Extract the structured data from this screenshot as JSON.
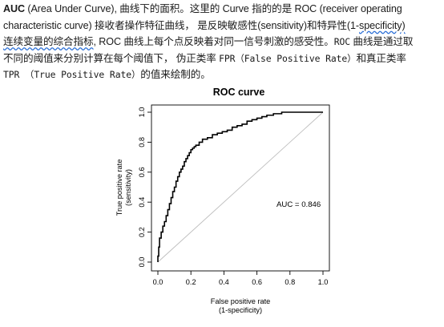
{
  "paragraph": {
    "line1": {
      "term": "AUC",
      "rest": " (Area Under Curve), 曲线下的面积。这里的 Curve 指的的是 ROC (receiver operating"
    },
    "line2": {
      "text": "characteristic curve) 接收者操作特征曲线， 是反映敏感性(sensitivity)和特异性(1-",
      "underlined": "specificity)"
    },
    "line3": {
      "underlined": "连续变量的综合指标",
      "text": ", ROC 曲线上每个点反映着对同一信号刺激的感受性。",
      "mono": "ROC",
      "tail": " 曲线是通过取"
    },
    "line4": {
      "text_a": "不同的阈值来分别计算在每个阈值下， 伪正类率 ",
      "mono": "FPR（False Positive Rate）",
      "text_b": "和真正类率"
    },
    "line5": {
      "mono": "TPR （True Positive Rate）",
      "text": "的值来绘制的。"
    }
  },
  "chart_data": {
    "type": "line",
    "title": "ROC curve",
    "xlabel": "False positive rate",
    "xlabel2": "(1-specificity)",
    "ylabel": "True positive rate",
    "ylabel2": "(sensitivity)",
    "xlim": [
      0,
      1
    ],
    "ylim": [
      0,
      1
    ],
    "xticks": [
      "0.0",
      "0.2",
      "0.4",
      "0.6",
      "0.8",
      "1.0"
    ],
    "yticks": [
      "0.0",
      "0.2",
      "0.4",
      "0.6",
      "0.8",
      "1.0"
    ],
    "annotation": "AUC = 0.846",
    "grid": false,
    "colors": {
      "curve": "#000000",
      "diagonal": "#bdbdbd"
    },
    "series": [
      {
        "name": "",
        "x": [
          0.0,
          0.0,
          0.005,
          0.005,
          0.01,
          0.01,
          0.02,
          0.02,
          0.03,
          0.03,
          0.04,
          0.04,
          0.05,
          0.05,
          0.06,
          0.06,
          0.07,
          0.07,
          0.08,
          0.08,
          0.09,
          0.09,
          0.1,
          0.1,
          0.11,
          0.11,
          0.12,
          0.12,
          0.13,
          0.13,
          0.14,
          0.14,
          0.15,
          0.15,
          0.16,
          0.16,
          0.17,
          0.17,
          0.18,
          0.18,
          0.19,
          0.19,
          0.2,
          0.2,
          0.21,
          0.21,
          0.22,
          0.22,
          0.23,
          0.23,
          0.25,
          0.25,
          0.27,
          0.27,
          0.3,
          0.3,
          0.33,
          0.33,
          0.36,
          0.36,
          0.39,
          0.39,
          0.42,
          0.42,
          0.45,
          0.45,
          0.48,
          0.48,
          0.51,
          0.51,
          0.54,
          0.54,
          0.57,
          0.57,
          0.6,
          0.6,
          0.63,
          0.63,
          0.66,
          0.66,
          0.7,
          0.7,
          0.75,
          0.75,
          1.0
        ],
        "y": [
          0.0,
          0.04,
          0.04,
          0.1,
          0.1,
          0.16,
          0.16,
          0.2,
          0.2,
          0.24,
          0.24,
          0.27,
          0.27,
          0.31,
          0.31,
          0.35,
          0.35,
          0.39,
          0.39,
          0.43,
          0.43,
          0.47,
          0.47,
          0.5,
          0.5,
          0.54,
          0.54,
          0.57,
          0.57,
          0.6,
          0.6,
          0.62,
          0.62,
          0.64,
          0.64,
          0.67,
          0.67,
          0.69,
          0.69,
          0.71,
          0.71,
          0.73,
          0.73,
          0.75,
          0.75,
          0.76,
          0.76,
          0.77,
          0.77,
          0.78,
          0.78,
          0.8,
          0.8,
          0.82,
          0.82,
          0.83,
          0.83,
          0.85,
          0.85,
          0.86,
          0.86,
          0.87,
          0.87,
          0.88,
          0.88,
          0.9,
          0.9,
          0.91,
          0.91,
          0.92,
          0.92,
          0.94,
          0.94,
          0.95,
          0.95,
          0.96,
          0.96,
          0.97,
          0.97,
          0.98,
          0.98,
          0.99,
          0.99,
          1.0,
          1.0
        ]
      }
    ]
  }
}
